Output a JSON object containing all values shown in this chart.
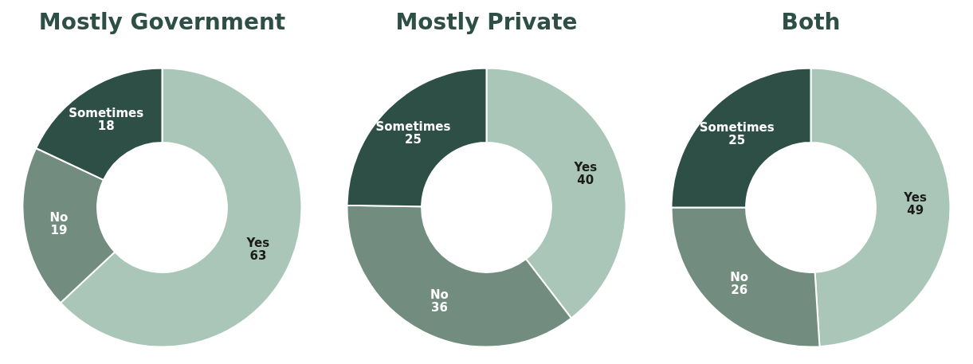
{
  "chart_data": [
    {
      "type": "donut",
      "title": "Mostly Government",
      "categories": [
        "Yes",
        "No",
        "Sometimes"
      ],
      "values": [
        63,
        19,
        18
      ],
      "colors": [
        "#a9c6b9",
        "#728d7f",
        "#2e4f45"
      ],
      "data_labels": true,
      "legend": false
    },
    {
      "type": "donut",
      "title": "Mostly Private",
      "categories": [
        "Yes",
        "No",
        "Sometimes"
      ],
      "values": [
        40,
        36,
        25
      ],
      "colors": [
        "#a9c6b9",
        "#728d7f",
        "#2e4f45"
      ],
      "data_labels": true,
      "legend": false
    },
    {
      "type": "donut",
      "title": "Both",
      "categories": [
        "Yes",
        "No",
        "Sometimes"
      ],
      "values": [
        49,
        26,
        25
      ],
      "colors": [
        "#a9c6b9",
        "#728d7f",
        "#2e4f45"
      ],
      "data_labels": true,
      "legend": false
    }
  ]
}
